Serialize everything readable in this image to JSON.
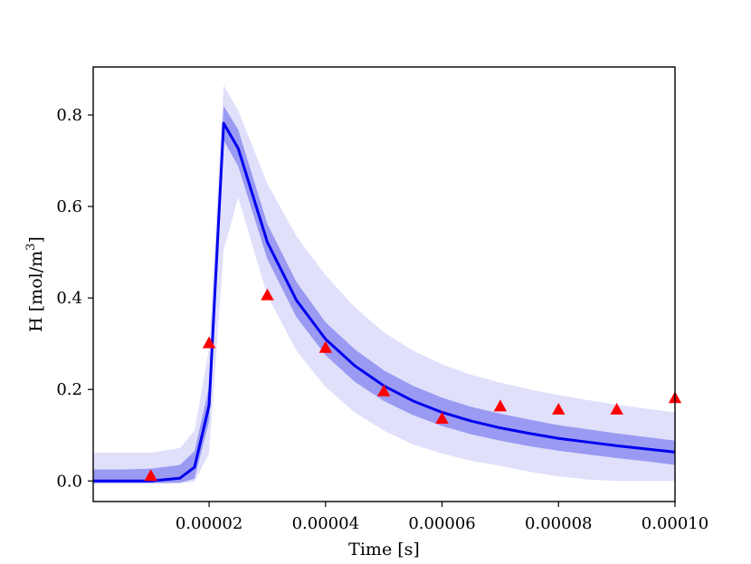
{
  "chart_data": {
    "type": "line",
    "xlabel": "Time [s]",
    "ylabel": "H [mol/m",
    "ylabel_sup": "3",
    "ylabel_close": "]",
    "xlim": [
      1e-07,
      0.0001
    ],
    "ylim": [
      -0.045,
      0.905
    ],
    "x_ticks": [
      {
        "value": 2e-05,
        "label": "0.00002"
      },
      {
        "value": 4e-05,
        "label": "0.00004"
      },
      {
        "value": 6e-05,
        "label": "0.00006"
      },
      {
        "value": 8e-05,
        "label": "0.00008"
      },
      {
        "value": 0.0001,
        "label": "0.00010"
      }
    ],
    "y_ticks": [
      {
        "value": 0.0,
        "label": "0.0"
      },
      {
        "value": 0.2,
        "label": "0.2"
      },
      {
        "value": 0.4,
        "label": "0.4"
      },
      {
        "value": 0.6,
        "label": "0.6"
      },
      {
        "value": 0.8,
        "label": "0.8"
      }
    ],
    "grid": false,
    "colors": {
      "mean_line": "#0000ee",
      "inner_band": "#9a9af2",
      "outer_band": "#e0e0fb",
      "observations": "#ff0000"
    },
    "x": [
      1e-07,
      5e-06,
      1e-05,
      1.5e-05,
      1.75e-05,
      2e-05,
      2.25e-05,
      2.5e-05,
      3e-05,
      3.5e-05,
      4e-05,
      4.5e-05,
      5e-05,
      5.5e-05,
      6e-05,
      6.5e-05,
      7e-05,
      7.5e-05,
      8e-05,
      8.5e-05,
      9e-05,
      9.5e-05,
      0.0001
    ],
    "series": [
      {
        "kind": "mean",
        "values": [
          0.0,
          0.0,
          0.0,
          0.006,
          0.03,
          0.165,
          0.782,
          0.727,
          0.522,
          0.395,
          0.31,
          0.252,
          0.208,
          0.175,
          0.15,
          0.131,
          0.116,
          0.104,
          0.093,
          0.085,
          0.077,
          0.07,
          0.063
        ]
      },
      {
        "kind": "inner_band",
        "lower": [
          -0.005,
          -0.005,
          -0.005,
          -0.004,
          0.005,
          0.13,
          0.745,
          0.688,
          0.485,
          0.358,
          0.275,
          0.217,
          0.175,
          0.144,
          0.12,
          0.102,
          0.088,
          0.076,
          0.066,
          0.058,
          0.05,
          0.043,
          0.035
        ],
        "upper": [
          0.025,
          0.025,
          0.027,
          0.035,
          0.065,
          0.205,
          0.82,
          0.768,
          0.562,
          0.435,
          0.347,
          0.288,
          0.242,
          0.208,
          0.182,
          0.162,
          0.147,
          0.134,
          0.122,
          0.113,
          0.104,
          0.096,
          0.088
        ]
      },
      {
        "kind": "outer_band",
        "lower": [
          -0.005,
          -0.005,
          -0.005,
          -0.005,
          -0.002,
          0.06,
          0.505,
          0.62,
          0.405,
          0.285,
          0.205,
          0.15,
          0.11,
          0.08,
          0.06,
          0.044,
          0.033,
          0.02,
          0.01,
          0.003,
          0.0,
          0.0,
          0.0
        ],
        "upper": [
          0.062,
          0.062,
          0.062,
          0.072,
          0.11,
          0.29,
          0.865,
          0.81,
          0.65,
          0.535,
          0.45,
          0.38,
          0.325,
          0.285,
          0.255,
          0.232,
          0.215,
          0.2,
          0.188,
          0.177,
          0.167,
          0.158,
          0.15
        ]
      },
      {
        "kind": "observations",
        "marker": "triangle",
        "x": [
          1e-05,
          2e-05,
          3e-05,
          4e-05,
          5e-05,
          6e-05,
          7e-05,
          8e-05,
          9e-05,
          0.0001
        ],
        "values": [
          0.01,
          0.3,
          0.405,
          0.29,
          0.195,
          0.135,
          0.162,
          0.155,
          0.155,
          0.18
        ]
      }
    ]
  }
}
